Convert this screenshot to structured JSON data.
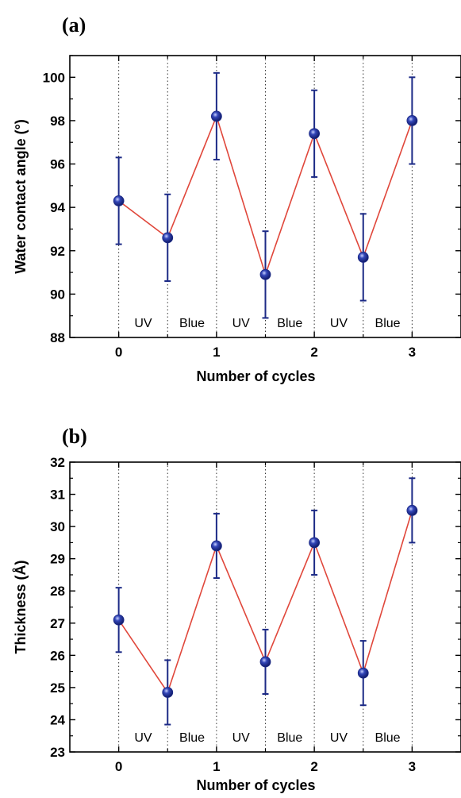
{
  "chart_data": [
    {
      "type": "line",
      "panel_label": "(a)",
      "xlabel": "Number of cycles",
      "ylabel": "Water contact angle (°)",
      "xlim": [
        -0.5,
        3.5
      ],
      "ylim": [
        88,
        101
      ],
      "x_ticks": [
        0,
        1,
        2,
        3
      ],
      "y_ticks": [
        88,
        90,
        92,
        94,
        96,
        98,
        100
      ],
      "grid": "vertical dotted lines at x = 0, 0.5, 1, 1.5, 2, 2.5, 3",
      "divider_x": [
        0,
        0.5,
        1,
        1.5,
        2,
        2.5,
        3
      ],
      "regions": [
        {
          "label": "UV",
          "x": 0.25
        },
        {
          "label": "Blue",
          "x": 0.75
        },
        {
          "label": "UV",
          "x": 1.25
        },
        {
          "label": "Blue",
          "x": 1.75
        },
        {
          "label": "UV",
          "x": 2.25
        },
        {
          "label": "Blue",
          "x": 2.75
        }
      ],
      "series": [
        {
          "x": [
            0,
            0.5,
            1,
            1.5,
            2,
            2.5,
            3
          ],
          "y": [
            94.3,
            92.6,
            98.2,
            90.9,
            97.4,
            91.7,
            98.0
          ],
          "error": [
            2.0,
            2.0,
            2.0,
            2.0,
            2.0,
            2.0,
            2.0
          ],
          "line_color": "#e0473b",
          "marker_color": "#1c2a86"
        }
      ]
    },
    {
      "type": "line",
      "panel_label": "(b)",
      "xlabel": "Number of cycles",
      "ylabel": "Thickness (Å)",
      "xlim": [
        -0.5,
        3.5
      ],
      "ylim": [
        23,
        32
      ],
      "x_ticks": [
        0,
        1,
        2,
        3
      ],
      "y_ticks": [
        23,
        24,
        25,
        26,
        27,
        28,
        29,
        30,
        31,
        32
      ],
      "grid": "vertical dotted lines at x = 0, 0.5, 1, 1.5, 2, 2.5, 3",
      "divider_x": [
        0,
        0.5,
        1,
        1.5,
        2,
        2.5,
        3
      ],
      "regions": [
        {
          "label": "UV",
          "x": 0.25
        },
        {
          "label": "Blue",
          "x": 0.75
        },
        {
          "label": "UV",
          "x": 1.25
        },
        {
          "label": "Blue",
          "x": 1.75
        },
        {
          "label": "UV",
          "x": 2.25
        },
        {
          "label": "Blue",
          "x": 2.75
        }
      ],
      "series": [
        {
          "x": [
            0,
            0.5,
            1,
            1.5,
            2,
            2.5,
            3
          ],
          "y": [
            27.1,
            24.85,
            29.4,
            25.8,
            29.5,
            25.45,
            30.5
          ],
          "error": [
            1.0,
            1.0,
            1.0,
            1.0,
            1.0,
            1.0,
            1.0
          ],
          "line_color": "#e0473b",
          "marker_color": "#1c2a86"
        }
      ]
    }
  ]
}
